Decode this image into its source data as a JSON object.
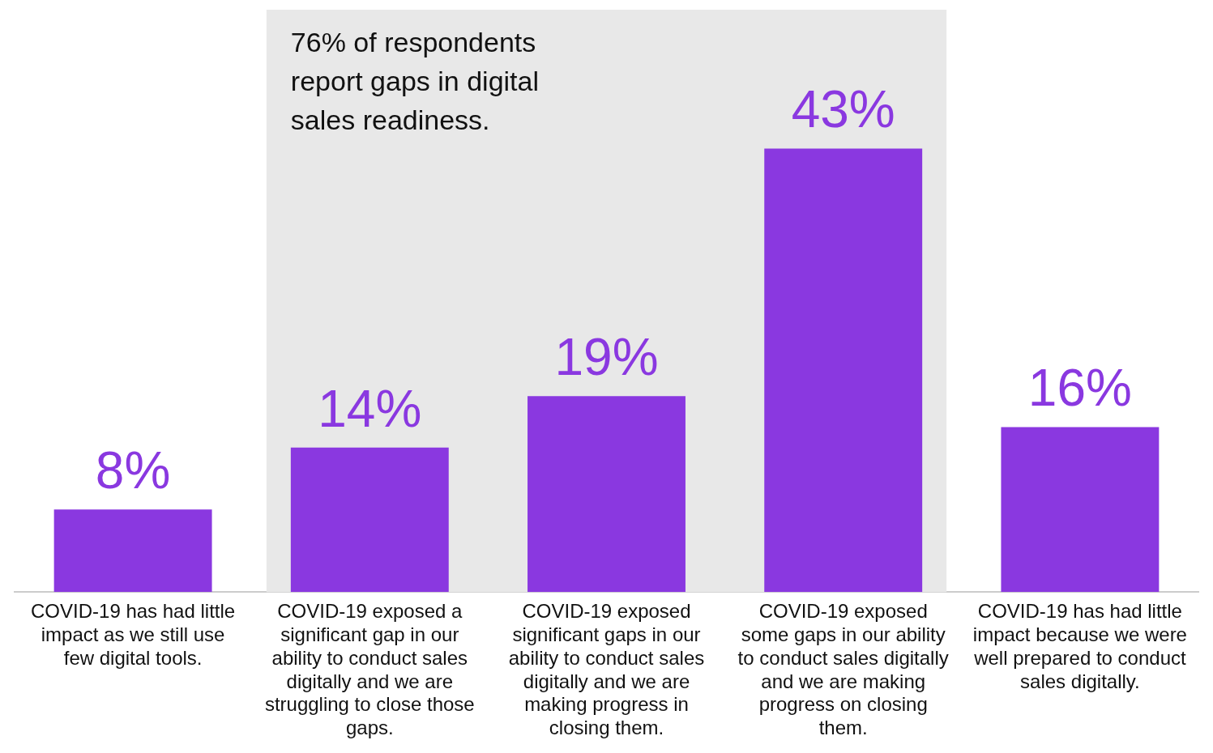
{
  "chart_data": {
    "type": "bar",
    "categories": [
      "COVID-19 has had little impact as we still use few digital tools.",
      "COVID-19 exposed a significant gap in our ability to conduct sales digitally and we are struggling to close those gaps.",
      "COVID-19 exposed significant gaps in our ability to conduct sales digitally and we are making progress in closing them.",
      "COVID-19 exposed some gaps in our ability to conduct sales digitally and we are making progress on closing them.",
      "COVID-19 has had little impact because we were well prepared to conduct sales digitally."
    ],
    "values": [
      8,
      14,
      19,
      43,
      16
    ],
    "value_labels": [
      "8%",
      "14%",
      "19%",
      "43%",
      "16%"
    ],
    "color": "#8a38e0",
    "bands": [
      {
        "axis": "x",
        "from": "COVID-19 exposed a significant gap in our ability to conduct sales digitally and we are struggling to close those gaps.",
        "to": "COVID-19 exposed some gaps in our ability to conduct sales digitally and we are making progress on closing them.",
        "label": "76% of respondents report gaps in digital sales readiness.",
        "color": "#e8e8e8"
      }
    ],
    "grid": false,
    "legend": false
  }
}
